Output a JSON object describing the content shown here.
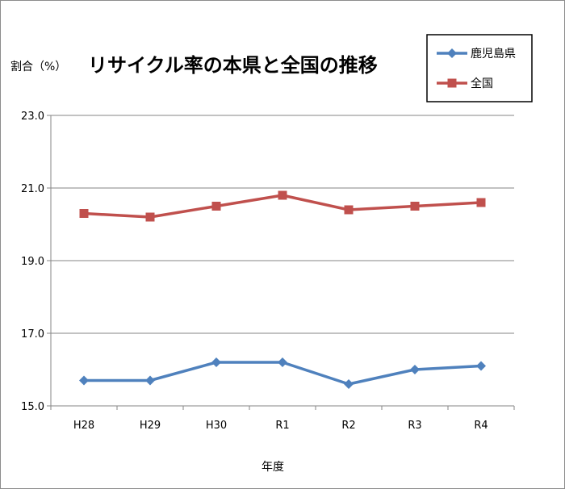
{
  "chart_data": {
    "type": "line",
    "title": "リサイクル率の本県と全国の推移",
    "ylabel": "割合（%）",
    "xlabel": "年度",
    "categories": [
      "H28",
      "H29",
      "H30",
      "R1",
      "R2",
      "R3",
      "R4"
    ],
    "ylim": [
      15.0,
      23.0
    ],
    "yticks": [
      "15.0",
      "17.0",
      "19.0",
      "21.0",
      "23.0"
    ],
    "grid": true,
    "legend_position": "top-right",
    "series": [
      {
        "name": "鹿児島県",
        "color": "#4f81bd",
        "marker": "diamond",
        "values": [
          15.7,
          15.7,
          16.2,
          16.2,
          15.6,
          16.0,
          16.1
        ]
      },
      {
        "name": "全国",
        "color": "#c0504d",
        "marker": "square",
        "values": [
          20.3,
          20.2,
          20.5,
          20.8,
          20.4,
          20.5,
          20.6
        ]
      }
    ]
  }
}
